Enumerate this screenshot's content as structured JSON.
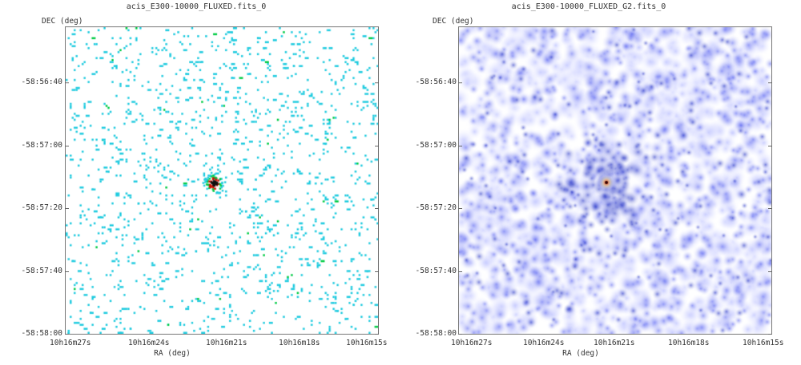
{
  "panels": [
    {
      "title": "acis_E300-10000_FLUXED.fits_0",
      "y_label": "DEC (deg)",
      "x_label": "RA (deg)",
      "y_ticks": [
        "-58:56:40",
        "-58:57:00",
        "-58:57:20",
        "-58:57:40",
        "-58:58:00"
      ],
      "x_ticks": [
        "10h16m27s",
        "10h16m24s",
        "10h16m21s",
        "10h16m18s",
        "10h16m15s"
      ],
      "style": "sparse-pixels",
      "colors": {
        "pixel": "#22cce0",
        "bright": "#00cc44",
        "hot": "#cc1100",
        "core": "#111111"
      }
    },
    {
      "title": "acis_E300-10000_FLUXED_G2.fits_0",
      "y_label": "DEC (deg)",
      "x_label": "RA (deg)",
      "y_ticks": [
        "-58:56:40",
        "-58:57:00",
        "-58:57:20",
        "-58:57:40",
        "-58:58:00"
      ],
      "x_ticks": [
        "10h16m27s",
        "10h16m24s",
        "10h16m21s",
        "10h16m18s",
        "10h16m15s"
      ],
      "style": "smoothed",
      "colors": {
        "low": "#c8ccff",
        "mid": "#5560f0",
        "high": "#1020c0",
        "hot": "#ffcc00",
        "core": "#cc0000"
      }
    }
  ]
}
